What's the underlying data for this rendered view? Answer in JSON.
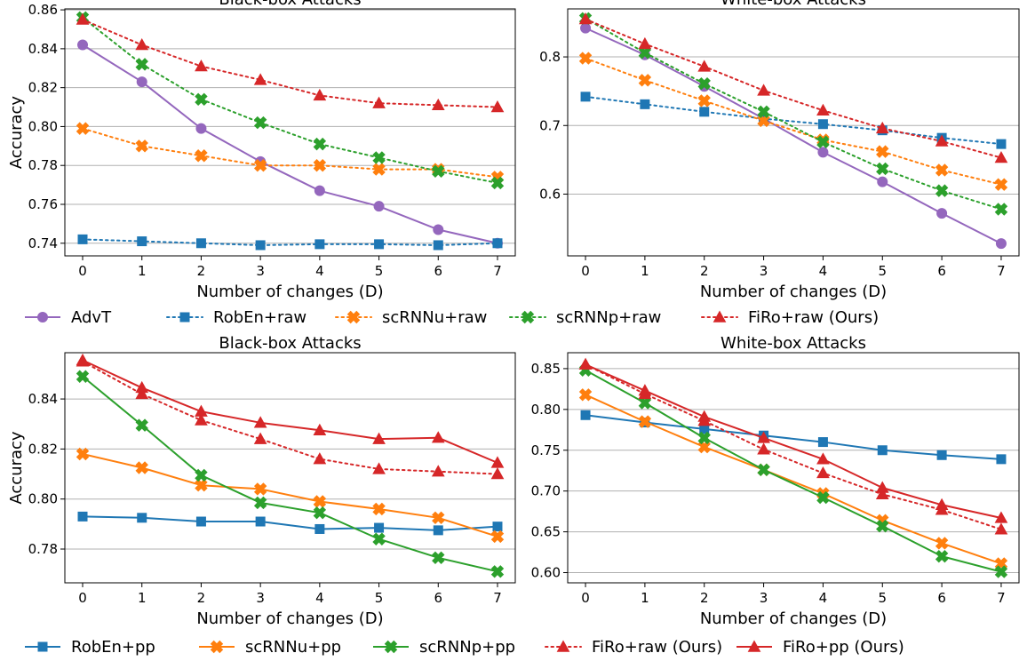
{
  "chart_data": [
    {
      "type": "line",
      "title": "Black-box Attacks",
      "xlabel": "Number of changes (D)",
      "ylabel": "Accuracy",
      "x": [
        0,
        1,
        2,
        3,
        4,
        5,
        6,
        7
      ],
      "xticks": [
        "0",
        "1",
        "2",
        "3",
        "4",
        "5",
        "6",
        "7"
      ],
      "ylim": [
        0.7335,
        0.8605
      ],
      "yticks": [
        "0.74",
        "0.76",
        "0.78",
        "0.80",
        "0.82",
        "0.84",
        "0.86"
      ],
      "yticks_values": [
        0.74,
        0.76,
        0.78,
        0.8,
        0.82,
        0.84,
        0.86
      ],
      "grid": true,
      "series": [
        {
          "name": "AdvT",
          "color": "#9467bd",
          "marker": "circle",
          "linestyle": "solid",
          "values": [
            0.842,
            0.823,
            0.799,
            0.782,
            0.767,
            0.759,
            0.747,
            0.74
          ]
        },
        {
          "name": "RobEn+raw",
          "color": "#1f77b4",
          "marker": "square",
          "linestyle": "dotted",
          "values": [
            0.742,
            0.741,
            0.74,
            0.739,
            0.7395,
            0.7395,
            0.739,
            0.74
          ]
        },
        {
          "name": "scRNNu+raw",
          "color": "#ff7f0e",
          "marker": "x",
          "linestyle": "dotted",
          "values": [
            0.799,
            0.79,
            0.785,
            0.78,
            0.78,
            0.778,
            0.778,
            0.774
          ]
        },
        {
          "name": "scRNNp+raw",
          "color": "#2ca02c",
          "marker": "x",
          "linestyle": "dotted",
          "values": [
            0.856,
            0.832,
            0.814,
            0.802,
            0.791,
            0.784,
            0.777,
            0.771
          ]
        },
        {
          "name": "FiRo+raw (Ours)",
          "color": "#d62728",
          "marker": "triangle",
          "linestyle": "dotted",
          "values": [
            0.855,
            0.842,
            0.831,
            0.824,
            0.816,
            0.812,
            0.811,
            0.81
          ]
        }
      ]
    },
    {
      "type": "line",
      "title": "White-box Attacks",
      "xlabel": "Number of changes (D)",
      "ylabel": "",
      "x": [
        0,
        1,
        2,
        3,
        4,
        5,
        6,
        7
      ],
      "xticks": [
        "0",
        "1",
        "2",
        "3",
        "4",
        "5",
        "6",
        "7"
      ],
      "ylim": [
        0.51,
        0.87
      ],
      "yticks": [
        "0.6",
        "0.7",
        "0.8"
      ],
      "yticks_values": [
        0.6,
        0.7,
        0.8
      ],
      "grid": true,
      "series": [
        {
          "name": "AdvT",
          "color": "#9467bd",
          "marker": "circle",
          "linestyle": "solid",
          "values": [
            0.842,
            0.803,
            0.757,
            0.71,
            0.661,
            0.618,
            0.572,
            0.528
          ]
        },
        {
          "name": "RobEn+raw",
          "color": "#1f77b4",
          "marker": "square",
          "linestyle": "dotted",
          "values": [
            0.742,
            0.731,
            0.72,
            0.71,
            0.702,
            0.693,
            0.682,
            0.673
          ]
        },
        {
          "name": "scRNNu+raw",
          "color": "#ff7f0e",
          "marker": "x",
          "linestyle": "dotted",
          "values": [
            0.798,
            0.766,
            0.736,
            0.707,
            0.679,
            0.662,
            0.635,
            0.614
          ]
        },
        {
          "name": "scRNNp+raw",
          "color": "#2ca02c",
          "marker": "x",
          "linestyle": "dotted",
          "values": [
            0.856,
            0.806,
            0.761,
            0.72,
            0.676,
            0.637,
            0.605,
            0.578
          ]
        },
        {
          "name": "FiRo+raw (Ours)",
          "color": "#d62728",
          "marker": "triangle",
          "linestyle": "dotted",
          "values": [
            0.855,
            0.819,
            0.786,
            0.751,
            0.722,
            0.696,
            0.677,
            0.653
          ]
        }
      ]
    },
    {
      "type": "line",
      "title": "Black-box Attacks",
      "xlabel": "Number of changes (D)",
      "ylabel": "Accuracy",
      "x": [
        0,
        1,
        2,
        3,
        4,
        5,
        6,
        7
      ],
      "xticks": [
        "0",
        "1",
        "2",
        "3",
        "4",
        "5",
        "6",
        "7"
      ],
      "ylim": [
        0.7665,
        0.8585
      ],
      "yticks": [
        "0.78",
        "0.80",
        "0.82",
        "0.84"
      ],
      "yticks_values": [
        0.78,
        0.8,
        0.82,
        0.84
      ],
      "grid": true,
      "series": [
        {
          "name": "RobEn+pp",
          "color": "#1f77b4",
          "marker": "square",
          "linestyle": "solid",
          "values": [
            0.793,
            0.7925,
            0.791,
            0.791,
            0.788,
            0.7885,
            0.7875,
            0.789
          ]
        },
        {
          "name": "scRNNu+pp",
          "color": "#ff7f0e",
          "marker": "x",
          "linestyle": "solid",
          "values": [
            0.818,
            0.8125,
            0.8055,
            0.804,
            0.799,
            0.796,
            0.7925,
            0.785
          ]
        },
        {
          "name": "scRNNp+pp",
          "color": "#2ca02c",
          "marker": "x",
          "linestyle": "solid",
          "values": [
            0.849,
            0.8295,
            0.8095,
            0.7985,
            0.7945,
            0.784,
            0.7765,
            0.771
          ]
        },
        {
          "name": "FiRo+raw (Ours)",
          "color": "#d62728",
          "marker": "triangle",
          "linestyle": "dotted",
          "values": [
            0.855,
            0.842,
            0.8315,
            0.824,
            0.816,
            0.812,
            0.811,
            0.81
          ]
        },
        {
          "name": "FiRo+pp (Ours)",
          "color": "#d62728",
          "marker": "triangle",
          "linestyle": "solid",
          "values": [
            0.8555,
            0.8445,
            0.835,
            0.8305,
            0.8275,
            0.824,
            0.8245,
            0.8145
          ]
        }
      ]
    },
    {
      "type": "line",
      "title": "White-box Attacks",
      "xlabel": "Number of changes (D)",
      "ylabel": "",
      "x": [
        0,
        1,
        2,
        3,
        4,
        5,
        6,
        7
      ],
      "xticks": [
        "0",
        "1",
        "2",
        "3",
        "4",
        "5",
        "6",
        "7"
      ],
      "ylim": [
        0.5875,
        0.8695
      ],
      "yticks": [
        "0.60",
        "0.65",
        "0.70",
        "0.75",
        "0.80",
        "0.85"
      ],
      "yticks_values": [
        0.6,
        0.65,
        0.7,
        0.75,
        0.8,
        0.85
      ],
      "grid": true,
      "series": [
        {
          "name": "RobEn+pp",
          "color": "#1f77b4",
          "marker": "square",
          "linestyle": "solid",
          "values": [
            0.793,
            0.784,
            0.776,
            0.768,
            0.76,
            0.75,
            0.744,
            0.739
          ]
        },
        {
          "name": "scRNNu+pp",
          "color": "#ff7f0e",
          "marker": "x",
          "linestyle": "solid",
          "values": [
            0.818,
            0.785,
            0.754,
            0.726,
            0.697,
            0.664,
            0.636,
            0.611
          ]
        },
        {
          "name": "scRNNp+pp",
          "color": "#2ca02c",
          "marker": "x",
          "linestyle": "solid",
          "values": [
            0.848,
            0.808,
            0.765,
            0.726,
            0.692,
            0.657,
            0.62,
            0.601
          ]
        },
        {
          "name": "FiRo+raw (Ours)",
          "color": "#d62728",
          "marker": "triangle",
          "linestyle": "dotted",
          "values": [
            0.855,
            0.819,
            0.786,
            0.751,
            0.722,
            0.696,
            0.677,
            0.653
          ]
        },
        {
          "name": "FiRo+pp (Ours)",
          "color": "#d62728",
          "marker": "triangle",
          "linestyle": "solid",
          "values": [
            0.855,
            0.823,
            0.791,
            0.765,
            0.739,
            0.704,
            0.683,
            0.667
          ]
        }
      ]
    }
  ],
  "legends": [
    {
      "entries": [
        {
          "name": "AdvT",
          "color": "#9467bd",
          "marker": "circle",
          "linestyle": "solid"
        },
        {
          "name": "RobEn+raw",
          "color": "#1f77b4",
          "marker": "square",
          "linestyle": "dotted"
        },
        {
          "name": "scRNNu+raw",
          "color": "#ff7f0e",
          "marker": "x",
          "linestyle": "dotted"
        },
        {
          "name": "scRNNp+raw",
          "color": "#2ca02c",
          "marker": "x",
          "linestyle": "dotted"
        },
        {
          "name": "FiRo+raw (Ours)",
          "color": "#d62728",
          "marker": "triangle",
          "linestyle": "dotted"
        }
      ]
    },
    {
      "entries": [
        {
          "name": "RobEn+pp",
          "color": "#1f77b4",
          "marker": "square",
          "linestyle": "solid"
        },
        {
          "name": "scRNNu+pp",
          "color": "#ff7f0e",
          "marker": "x",
          "linestyle": "solid"
        },
        {
          "name": "scRNNp+pp",
          "color": "#2ca02c",
          "marker": "x",
          "linestyle": "solid"
        },
        {
          "name": "FiRo+raw (Ours)",
          "color": "#d62728",
          "marker": "triangle",
          "linestyle": "dotted"
        },
        {
          "name": "FiRo+pp (Ours)",
          "color": "#d62728",
          "marker": "triangle",
          "linestyle": "solid"
        }
      ]
    }
  ]
}
